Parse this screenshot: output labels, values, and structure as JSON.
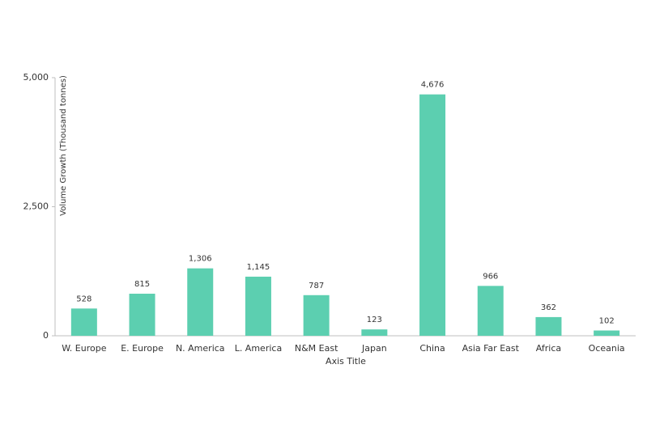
{
  "chart_data": {
    "type": "bar",
    "y_axis_label": "Volume Growth (Thousand tonnes)",
    "x_axis_label": "Axis Title",
    "categories": [
      "W. Europe",
      "E. Europe",
      "N. America",
      "L. America",
      "N&M East",
      "Japan",
      "China",
      "Asia Far East",
      "Africa",
      "Oceania"
    ],
    "values": [
      528,
      815,
      1306,
      1145,
      787,
      123,
      4676,
      966,
      362,
      102
    ],
    "value_labels": [
      "528",
      "815",
      "1,306",
      "1,145",
      "787",
      "123",
      "4,676",
      "966",
      "362",
      "102"
    ],
    "color": "#5ccfb0",
    "ylim": [
      0,
      5000
    ],
    "yticks": [
      0,
      {
        "value": 2500,
        "label": "2,500"
      },
      {
        "value": 5000,
        "label": "5,000"
      }
    ],
    "grid": false
  }
}
